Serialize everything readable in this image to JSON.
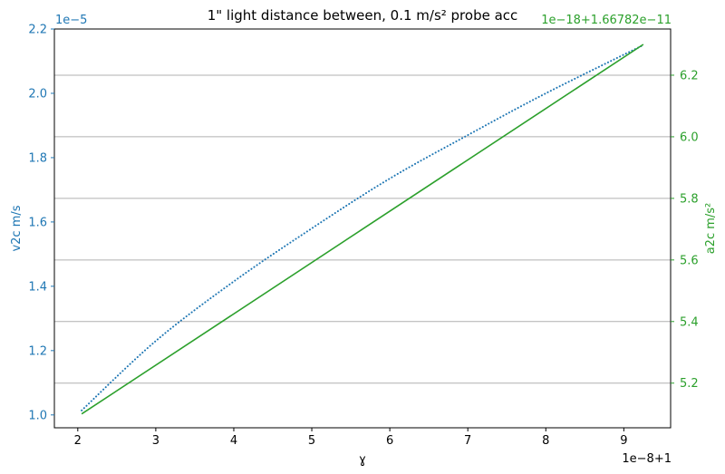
{
  "chart_data": {
    "type": "line",
    "title": "1\" light distance between, 0.1 m/s² probe acc",
    "xlabel": "ɣ",
    "x_offset_label": "1e−8+1",
    "x_ticks": [
      "2",
      "3",
      "4",
      "5",
      "6",
      "7",
      "8",
      "9"
    ],
    "xlim": [
      1.7,
      9.6
    ],
    "left_axis": {
      "label": "v2c m/s",
      "offset_label": "1e−5",
      "color": "#1f77b4",
      "ticks": [
        "1.0",
        "1.2",
        "1.4",
        "1.6",
        "1.8",
        "2.0",
        "2.2"
      ],
      "ylim": [
        0.96,
        2.2
      ]
    },
    "right_axis": {
      "label": "a2c m/s²",
      "offset_label": "1e−18+1.66782e−11",
      "color": "#2ca02c",
      "ticks": [
        "5.2",
        "5.4",
        "5.6",
        "5.8",
        "6.0",
        "6.2"
      ],
      "ylim": [
        5.055,
        6.35
      ]
    },
    "grid": "horizontal, right axis",
    "series": [
      {
        "axis": "left",
        "style": "dotted",
        "color": "#1f77b4",
        "points": [
          [
            2.05,
            1.014
          ],
          [
            3.0,
            1.23
          ],
          [
            4.0,
            1.415
          ],
          [
            5.0,
            1.58
          ],
          [
            6.0,
            1.735
          ],
          [
            7.0,
            1.87
          ],
          [
            8.0,
            2.0
          ],
          [
            9.25,
            2.15
          ]
        ]
      },
      {
        "axis": "right",
        "style": "solid",
        "color": "#2ca02c",
        "points": [
          [
            2.05,
            5.1
          ],
          [
            9.25,
            6.3
          ]
        ]
      }
    ]
  }
}
